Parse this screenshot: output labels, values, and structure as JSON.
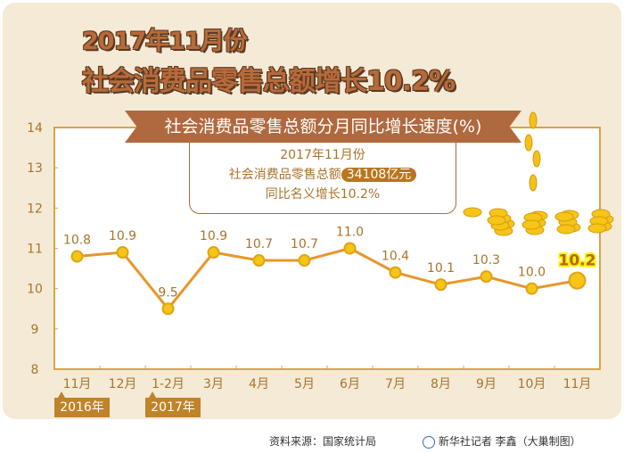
{
  "header": {
    "line1": "2017年11月份",
    "line2": "社会消费品零售总额增长10.2%"
  },
  "banner": "社会消费品零售总额分月同比增长速度(%)",
  "info": {
    "line1": "2017年11月份",
    "line2_prefix": "社会消费品零售总额",
    "amount": "34108亿元",
    "line3": "同比名义增长10.2%"
  },
  "year_tags": [
    "2016年",
    "2017年"
  ],
  "footer": {
    "source": "资料来源：国家统计局",
    "credit": "新华社记者 李鑫（大巢制图）"
  },
  "colors": {
    "line": "#e8962a",
    "marker": "#f5c518",
    "axis": "#d9a24a",
    "text": "#a8742c",
    "highlight": "#fff200"
  },
  "chart_data": {
    "type": "line",
    "title": "社会消费品零售总额分月同比增长速度(%)",
    "categories": [
      "11月",
      "12月",
      "1-2月",
      "3月",
      "4月",
      "5月",
      "6月",
      "7月",
      "8月",
      "9月",
      "10月",
      "11月"
    ],
    "values": [
      10.8,
      10.9,
      9.5,
      10.9,
      10.7,
      10.7,
      11.0,
      10.4,
      10.1,
      10.3,
      10.0,
      10.2
    ],
    "labels": [
      "10.8",
      "10.9",
      "9.5",
      "10.9",
      "10.7",
      "10.7",
      "11.0",
      "10.4",
      "10.1",
      "10.3",
      "10.0",
      "10.2"
    ],
    "yticks": [
      "8",
      "9",
      "10",
      "11",
      "12",
      "13",
      "14"
    ],
    "ylim": [
      8,
      14
    ],
    "grid": false
  }
}
